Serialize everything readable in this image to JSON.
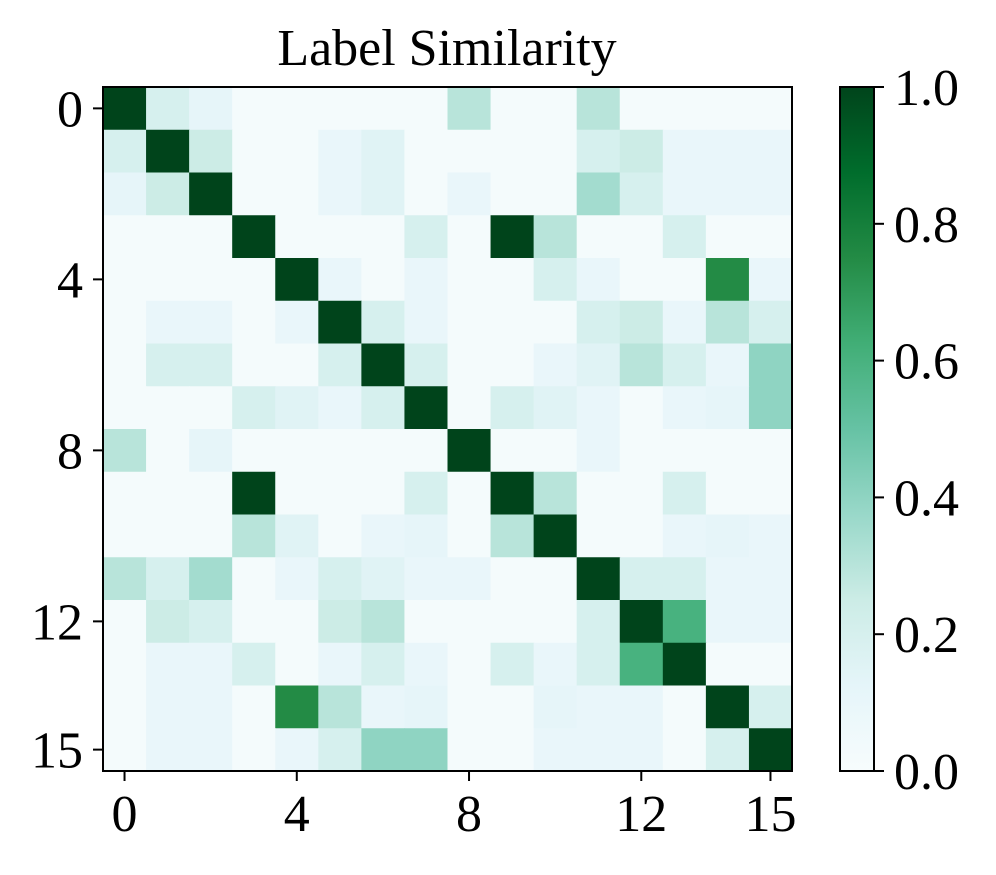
{
  "chart_data": {
    "type": "heatmap",
    "title": "Label Similarity",
    "xlabel": "",
    "ylabel": "",
    "size": 16,
    "x_ticks": [
      0,
      4,
      8,
      12,
      15
    ],
    "y_ticks": [
      0,
      4,
      8,
      12,
      15
    ],
    "colorbar": {
      "min": 0.0,
      "max": 1.0,
      "ticks": [
        "0.0",
        "0.2",
        "0.4",
        "0.6",
        "0.8",
        "1.0"
      ],
      "colormap": "BuGn"
    },
    "matrix": [
      [
        1.0,
        0.2,
        0.12,
        0.02,
        0.02,
        0.02,
        0.02,
        0.02,
        0.3,
        0.02,
        0.02,
        0.3,
        0.02,
        0.02,
        0.02,
        0.02
      ],
      [
        0.2,
        1.0,
        0.25,
        0.02,
        0.02,
        0.1,
        0.15,
        0.02,
        0.02,
        0.02,
        0.02,
        0.2,
        0.25,
        0.1,
        0.1,
        0.1
      ],
      [
        0.12,
        0.25,
        1.0,
        0.02,
        0.02,
        0.1,
        0.15,
        0.02,
        0.1,
        0.02,
        0.02,
        0.35,
        0.2,
        0.1,
        0.1,
        0.1
      ],
      [
        0.02,
        0.02,
        0.02,
        1.0,
        0.02,
        0.02,
        0.02,
        0.2,
        0.02,
        1.0,
        0.3,
        0.02,
        0.02,
        0.2,
        0.02,
        0.02
      ],
      [
        0.02,
        0.02,
        0.02,
        0.02,
        1.0,
        0.1,
        0.02,
        0.1,
        0.02,
        0.02,
        0.2,
        0.1,
        0.02,
        0.02,
        0.75,
        0.1
      ],
      [
        0.02,
        0.1,
        0.1,
        0.02,
        0.1,
        1.0,
        0.2,
        0.1,
        0.02,
        0.02,
        0.02,
        0.2,
        0.25,
        0.1,
        0.3,
        0.2
      ],
      [
        0.02,
        0.2,
        0.2,
        0.02,
        0.02,
        0.2,
        1.0,
        0.2,
        0.02,
        0.02,
        0.1,
        0.15,
        0.3,
        0.2,
        0.1,
        0.4
      ],
      [
        0.02,
        0.02,
        0.02,
        0.2,
        0.15,
        0.1,
        0.2,
        1.0,
        0.02,
        0.2,
        0.15,
        0.1,
        0.02,
        0.1,
        0.12,
        0.4
      ],
      [
        0.3,
        0.02,
        0.12,
        0.02,
        0.02,
        0.02,
        0.02,
        0.02,
        1.0,
        0.02,
        0.02,
        0.1,
        0.02,
        0.02,
        0.02,
        0.02
      ],
      [
        0.02,
        0.02,
        0.02,
        1.0,
        0.02,
        0.02,
        0.02,
        0.2,
        0.02,
        1.0,
        0.3,
        0.02,
        0.02,
        0.2,
        0.02,
        0.02
      ],
      [
        0.02,
        0.02,
        0.02,
        0.3,
        0.15,
        0.02,
        0.1,
        0.12,
        0.02,
        0.3,
        1.0,
        0.02,
        0.02,
        0.1,
        0.12,
        0.1
      ],
      [
        0.3,
        0.2,
        0.35,
        0.02,
        0.1,
        0.2,
        0.15,
        0.1,
        0.1,
        0.02,
        0.02,
        1.0,
        0.2,
        0.2,
        0.1,
        0.1
      ],
      [
        0.02,
        0.25,
        0.2,
        0.02,
        0.02,
        0.25,
        0.3,
        0.02,
        0.02,
        0.02,
        0.02,
        0.2,
        1.0,
        0.6,
        0.1,
        0.1
      ],
      [
        0.02,
        0.1,
        0.1,
        0.2,
        0.02,
        0.1,
        0.2,
        0.1,
        0.02,
        0.2,
        0.1,
        0.2,
        0.6,
        1.0,
        0.02,
        0.02
      ],
      [
        0.02,
        0.1,
        0.1,
        0.02,
        0.75,
        0.3,
        0.1,
        0.12,
        0.02,
        0.02,
        0.12,
        0.1,
        0.1,
        0.02,
        1.0,
        0.2
      ],
      [
        0.02,
        0.1,
        0.1,
        0.02,
        0.1,
        0.2,
        0.4,
        0.4,
        0.02,
        0.02,
        0.1,
        0.1,
        0.1,
        0.02,
        0.2,
        1.0
      ]
    ]
  }
}
